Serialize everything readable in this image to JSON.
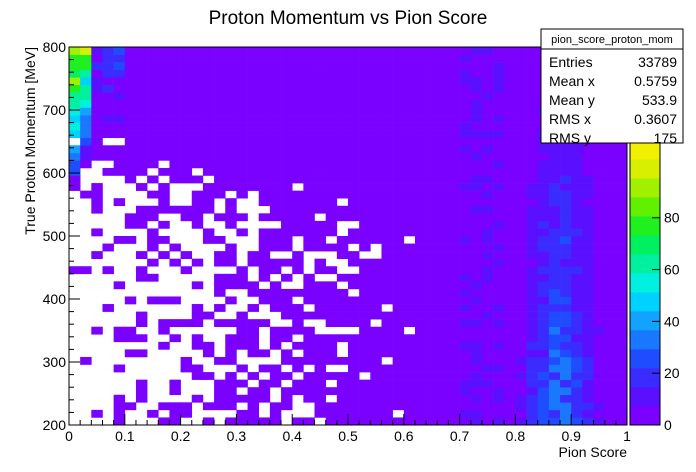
{
  "chart_data": {
    "type": "heatmap",
    "title": "Proton Momentum vs Pion Score",
    "xlabel": "Pion Score",
    "ylabel": "True Proton Momentum [MeV]",
    "xlim": [
      0,
      1
    ],
    "ylim": [
      200,
      800
    ],
    "xticks": [
      "0",
      "0.1",
      "0.2",
      "0.3",
      "0.4",
      "0.5",
      "0.6",
      "0.7",
      "0.8",
      "0.9",
      "1"
    ],
    "yticks": [
      "200",
      "300",
      "400",
      "500",
      "600",
      "700",
      "800"
    ],
    "x_bins": 50,
    "y_bins": 50,
    "z_range": [
      0,
      100
    ],
    "zticks": [
      "0",
      "20",
      "40",
      "60",
      "80"
    ],
    "palette": [
      "#7a00ff",
      "#5a10ff",
      "#3a2cff",
      "#1f4cff",
      "#1a78ff",
      "#12a2ff",
      "#00d2ff",
      "#00f0e0",
      "#00f0a0",
      "#00f060",
      "#20f020",
      "#60f000",
      "#a0f000",
      "#d8f000",
      "#f0f000"
    ],
    "stats": {
      "name": "pion_score_proton_mom",
      "rows": [
        {
          "label": "Entries",
          "value": "33789"
        },
        {
          "label": "Mean x",
          "value": "0.5759"
        },
        {
          "label": "Mean y",
          "value": "533.9"
        },
        {
          "label": "RMS x",
          "value": "0.3607"
        },
        {
          "label": "RMS y",
          "value": "175"
        }
      ]
    }
  }
}
